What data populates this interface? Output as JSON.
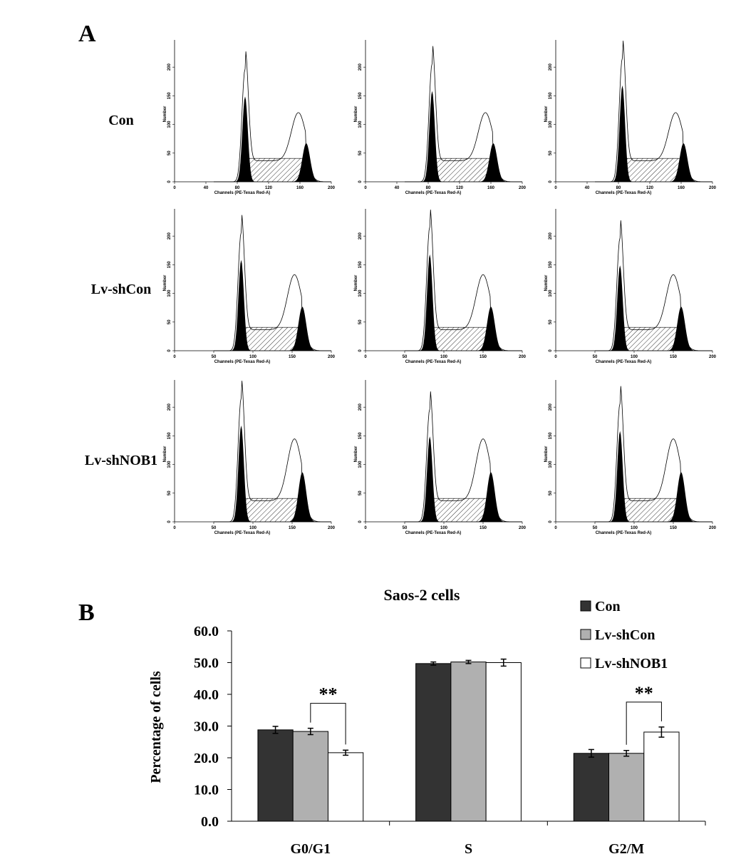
{
  "panel_a": {
    "label": "A",
    "rows": [
      "Con",
      "Lv-shCon",
      "Lv-shNOB1"
    ],
    "y_axis_label": "Number",
    "x_axis_label": "Channels (PE-Texas Red-A)",
    "ylim": [
      0,
      240
    ],
    "yticks": [
      0,
      50,
      100,
      150,
      200
    ],
    "xlim": [
      0,
      200
    ],
    "xticks_first_row": [
      0,
      40,
      80,
      120,
      160,
      200
    ],
    "xticks": [
      0,
      50,
      100,
      150,
      200
    ]
  },
  "chart_data": {
    "type": "bar",
    "panel_label": "B",
    "title": "Saos-2 cells",
    "y_axis_label": "Percentage of cells",
    "categories": [
      "G0/G1",
      "S",
      "G2/M"
    ],
    "series": [
      {
        "name": "Con",
        "color": "#333333",
        "values": [
          28.8,
          49.7,
          21.4
        ],
        "errors": [
          1.1,
          0.5,
          1.2
        ]
      },
      {
        "name": "Lv-shCon",
        "color": "#b0b0b0",
        "values": [
          28.3,
          50.2,
          21.4
        ],
        "errors": [
          1.0,
          0.5,
          0.9
        ]
      },
      {
        "name": "Lv-shNOB1",
        "color": "#ffffff",
        "values": [
          21.6,
          50.0,
          28.1
        ],
        "errors": [
          0.8,
          1.1,
          1.6
        ]
      }
    ],
    "ylim": [
      0,
      60
    ],
    "yticks": [
      {
        "value": 0,
        "label": "0.0"
      },
      {
        "value": 10,
        "label": "10.0"
      },
      {
        "value": 20,
        "label": "20.0"
      },
      {
        "value": 30,
        "label": "30.0"
      },
      {
        "value": 40,
        "label": "40.0"
      },
      {
        "value": 50,
        "label": "50.0"
      },
      {
        "value": 60,
        "label": "60.0"
      }
    ],
    "annotations": [
      {
        "text": "**",
        "category": "G0/G1"
      },
      {
        "text": "**",
        "category": "G2/M"
      }
    ]
  }
}
